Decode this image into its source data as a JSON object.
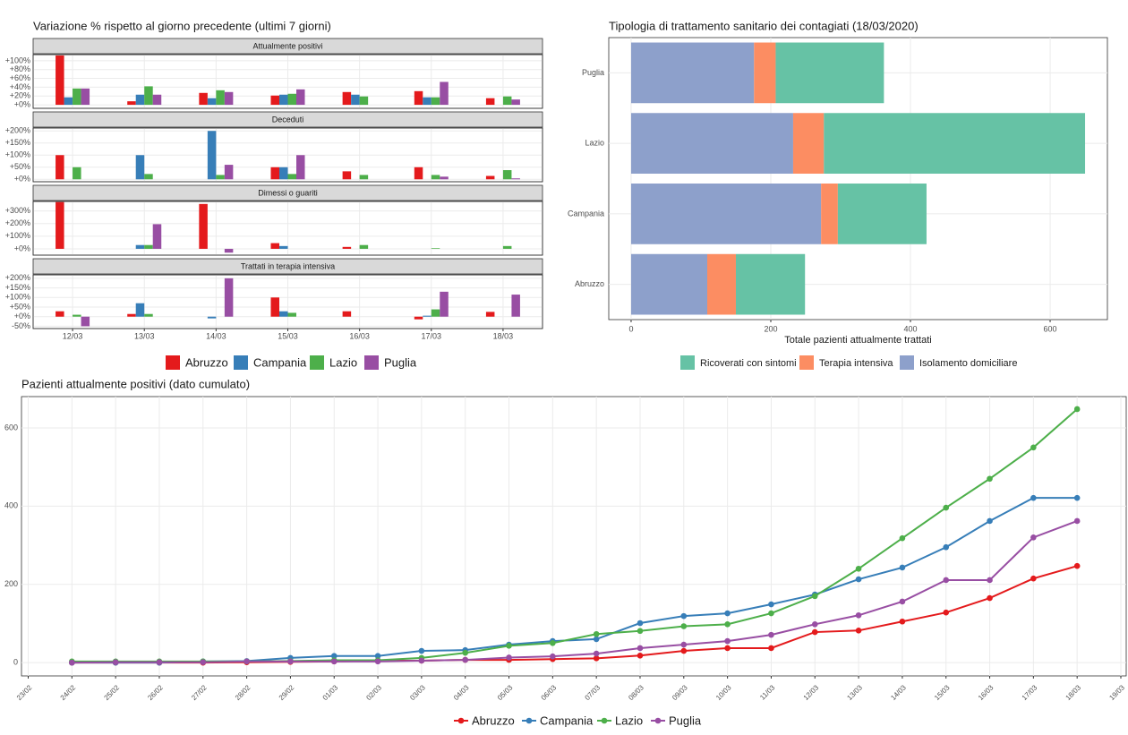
{
  "chart_data": [
    {
      "type": "bar",
      "title": "Variazione % rispetto al giorno precedente (ultimi 7 giorni)",
      "categories": [
        "12/03",
        "13/03",
        "14/03",
        "15/03",
        "16/03",
        "17/03",
        "18/03"
      ],
      "series": [
        {
          "name": "Abruzzo",
          "color": "#e41a1c"
        },
        {
          "name": "Campania",
          "color": "#377eb8"
        },
        {
          "name": "Lazio",
          "color": "#4daf4a"
        },
        {
          "name": "Puglia",
          "color": "#984ea3"
        }
      ],
      "grid": true,
      "facets": [
        {
          "title": "Attualmente positivi",
          "ylim": [
            -8,
            114
          ],
          "yticks": [
            {
              "value": 0,
              "label": "+0%"
            },
            {
              "value": 20,
              "label": "+20%"
            },
            {
              "value": 40,
              "label": "+40%"
            },
            {
              "value": 60,
              "label": "+60%"
            },
            {
              "value": 80,
              "label": "+80%"
            },
            {
              "value": 100,
              "label": "+100%"
            }
          ],
          "values": [
            [
              112,
              8,
              27,
              21,
              29,
              31,
              15
            ],
            [
              17,
              23,
              15,
              23,
              23,
              17,
              0
            ],
            [
              37,
              42,
              33,
              25,
              19,
              17,
              19
            ],
            [
              37,
              23,
              29,
              35,
              0,
              52,
              12
            ]
          ]
        },
        {
          "title": "Deceduti",
          "ylim": [
            -10,
            212
          ],
          "yticks": [
            {
              "value": 0,
              "label": "+0%"
            },
            {
              "value": 50,
              "label": "+50%"
            },
            {
              "value": 100,
              "label": "+100%"
            },
            {
              "value": 150,
              "label": "+150%"
            },
            {
              "value": 200,
              "label": "+200%"
            }
          ],
          "values": [
            [
              100,
              0,
              0,
              50,
              33,
              50,
              14
            ],
            [
              0,
              100,
              200,
              50,
              0,
              0,
              0
            ],
            [
              50,
              22,
              18,
              22,
              18,
              18,
              38
            ],
            [
              0,
              0,
              60,
              100,
              0,
              11,
              4
            ]
          ]
        },
        {
          "title": "Dimessi o guariti",
          "ylim": [
            -50,
            375
          ],
          "yticks": [
            {
              "value": 0,
              "label": "+0%"
            },
            {
              "value": 100,
              "label": "+100%"
            },
            {
              "value": 200,
              "label": "+200%"
            },
            {
              "value": 300,
              "label": "+300%"
            }
          ],
          "values": [
            [
              370,
              0,
              355,
              45,
              15,
              0,
              0
            ],
            [
              0,
              30,
              0,
              22,
              0,
              0,
              0
            ],
            [
              0,
              30,
              0,
              0,
              30,
              5,
              22
            ],
            [
              0,
              195,
              -30,
              0,
              0,
              0,
              0
            ]
          ]
        },
        {
          "title": "Trattati in terapia intensiva",
          "ylim": [
            -62,
            218
          ],
          "yticks": [
            {
              "value": -50,
              "label": "-50%"
            },
            {
              "value": 0,
              "label": "+0%"
            },
            {
              "value": 50,
              "label": "+50%"
            },
            {
              "value": 100,
              "label": "+100%"
            },
            {
              "value": 150,
              "label": "+150%"
            },
            {
              "value": 200,
              "label": "+200%"
            }
          ],
          "values": [
            [
              28,
              14,
              0,
              100,
              28,
              -14,
              25
            ],
            [
              0,
              70,
              -9,
              28,
              0,
              5,
              0
            ],
            [
              10,
              14,
              0,
              20,
              0,
              38,
              0
            ],
            [
              -50,
              0,
              200,
              0,
              0,
              130,
              115
            ]
          ]
        }
      ]
    },
    {
      "type": "bar",
      "orientation": "horizontal",
      "stacked": true,
      "title": "Tipologia di trattamento sanitario dei contagiati (18/03/2020)",
      "xlabel": "Totale pazienti attualmente trattati",
      "categories": [
        "Abruzzo",
        "Campania",
        "Lazio",
        "Puglia"
      ],
      "series": [
        {
          "name": "Ricoverati con sintomi",
          "color": "#66c2a5",
          "values": [
            99,
            127,
            374,
            155
          ]
        },
        {
          "name": "Terapia intensiva",
          "color": "#fc8d62",
          "values": [
            41,
            24,
            44,
            31
          ]
        },
        {
          "name": "Isolamento domiciliare",
          "color": "#8da0cb",
          "values": [
            109,
            272,
            232,
            176
          ]
        }
      ],
      "xlim": [
        -32,
        682
      ],
      "xticks": [
        0,
        200,
        400,
        600
      ],
      "grid": true
    },
    {
      "type": "line",
      "title": "Pazienti attualmente positivi (dato cumulato)",
      "categories": [
        "23/02",
        "24/02",
        "25/02",
        "26/02",
        "27/02",
        "28/02",
        "29/02",
        "01/03",
        "02/03",
        "03/03",
        "04/03",
        "05/03",
        "06/03",
        "07/03",
        "08/03",
        "09/03",
        "10/03",
        "11/03",
        "12/03",
        "13/03",
        "14/03",
        "15/03",
        "16/03",
        "17/03",
        "18/03",
        "19/03"
      ],
      "series": [
        {
          "name": "Abruzzo",
          "color": "#e41a1c",
          "values": [
            null,
            0,
            0,
            0,
            0,
            1,
            2,
            3,
            5,
            5,
            7,
            7,
            9,
            11,
            18,
            30,
            37,
            37,
            78,
            82,
            105,
            128,
            165,
            215,
            247,
            null
          ]
        },
        {
          "name": "Campania",
          "color": "#377eb8",
          "values": [
            null,
            0,
            0,
            0,
            3,
            4,
            12,
            17,
            17,
            30,
            32,
            46,
            55,
            60,
            101,
            119,
            126,
            149,
            174,
            213,
            243,
            295,
            362,
            421,
            421,
            null
          ]
        },
        {
          "name": "Lazio",
          "color": "#4daf4a",
          "values": [
            null,
            3,
            3,
            3,
            3,
            3,
            4,
            6,
            6,
            12,
            25,
            43,
            50,
            73,
            81,
            93,
            98,
            126,
            170,
            240,
            318,
            396,
            470,
            550,
            648,
            null
          ]
        },
        {
          "name": "Puglia",
          "color": "#984ea3",
          "values": [
            null,
            0,
            1,
            1,
            1,
            3,
            3,
            3,
            3,
            5,
            7,
            13,
            16,
            23,
            37,
            46,
            55,
            71,
            98,
            121,
            156,
            211,
            211,
            320,
            362,
            null
          ]
        }
      ],
      "ylim": [
        -34,
        680
      ],
      "yticks": [
        0,
        200,
        400,
        600
      ],
      "grid": true
    }
  ]
}
